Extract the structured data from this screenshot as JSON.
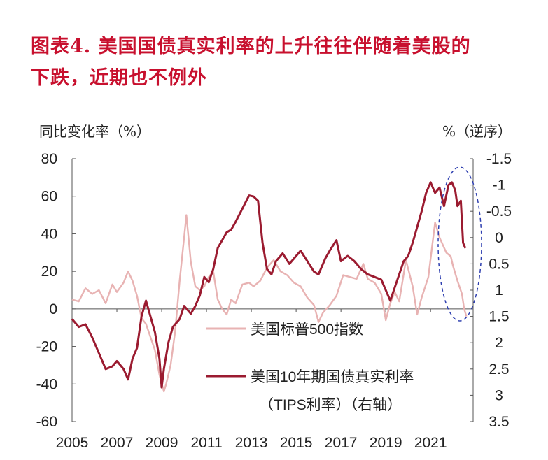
{
  "title": {
    "line1": "图表4.  美国国债真实利率的上升往往伴随着美股的",
    "line2": "下跌，近期也不例外"
  },
  "chart_data": {
    "type": "line",
    "left_axis": {
      "label": "同比变化率（%）",
      "min": -60,
      "max": 80,
      "ticks": [
        "80",
        "60",
        "40",
        "20",
        "0",
        "-20",
        "-40",
        "-60"
      ]
    },
    "right_axis": {
      "label": "%（逆序）",
      "min": -1.5,
      "max": 3.5,
      "inverted": true,
      "ticks": [
        "-1.5",
        "-1",
        "-0.5",
        "0",
        "0.5",
        "1",
        "1.5",
        "2",
        "2.5",
        "3",
        "3.5"
      ]
    },
    "x_ticks": [
      "2005",
      "2007",
      "2009",
      "2011",
      "2013",
      "2015",
      "2017",
      "2019",
      "2021"
    ],
    "legend": {
      "position": "center-right",
      "lines": [
        "美国标普500指数",
        "美国10年期国债真实利率",
        "（TIPS利率）（右轴）"
      ]
    },
    "colors": {
      "sp500": "#e8b3b3",
      "tips": "#9b1b30",
      "ellipse": "#2e3fb0"
    },
    "grid": false,
    "series": [
      {
        "name": "美国标普500指数",
        "axis": "left",
        "points": [
          [
            2005.0,
            5
          ],
          [
            2005.3,
            4
          ],
          [
            2005.6,
            11
          ],
          [
            2005.9,
            8
          ],
          [
            2006.2,
            10
          ],
          [
            2006.5,
            3
          ],
          [
            2006.8,
            13
          ],
          [
            2007.0,
            9
          ],
          [
            2007.3,
            14
          ],
          [
            2007.5,
            20
          ],
          [
            2007.7,
            15
          ],
          [
            2007.9,
            7
          ],
          [
            2008.1,
            -5
          ],
          [
            2008.3,
            -8
          ],
          [
            2008.5,
            -15
          ],
          [
            2008.7,
            -22
          ],
          [
            2008.9,
            -35
          ],
          [
            2009.1,
            -44
          ],
          [
            2009.2,
            -40
          ],
          [
            2009.4,
            -30
          ],
          [
            2009.6,
            -12
          ],
          [
            2009.8,
            15
          ],
          [
            2010.0,
            38
          ],
          [
            2010.1,
            50
          ],
          [
            2010.3,
            25
          ],
          [
            2010.5,
            12
          ],
          [
            2010.7,
            10
          ],
          [
            2010.9,
            12
          ],
          [
            2011.1,
            17
          ],
          [
            2011.3,
            20
          ],
          [
            2011.5,
            5
          ],
          [
            2011.7,
            0
          ],
          [
            2011.9,
            -3
          ],
          [
            2012.1,
            5
          ],
          [
            2012.3,
            3
          ],
          [
            2012.6,
            13
          ],
          [
            2012.9,
            14
          ],
          [
            2013.1,
            12
          ],
          [
            2013.4,
            15
          ],
          [
            2013.7,
            22
          ],
          [
            2014.0,
            26
          ],
          [
            2014.3,
            20
          ],
          [
            2014.6,
            18
          ],
          [
            2014.9,
            14
          ],
          [
            2015.2,
            12
          ],
          [
            2015.5,
            6
          ],
          [
            2015.8,
            2
          ],
          [
            2016.0,
            -7
          ],
          [
            2016.2,
            -2
          ],
          [
            2016.5,
            2
          ],
          [
            2016.8,
            7
          ],
          [
            2017.1,
            18
          ],
          [
            2017.4,
            17
          ],
          [
            2017.7,
            16
          ],
          [
            2018.0,
            24
          ],
          [
            2018.2,
            16
          ],
          [
            2018.5,
            14
          ],
          [
            2018.8,
            8
          ],
          [
            2019.0,
            -6
          ],
          [
            2019.2,
            3
          ],
          [
            2019.4,
            9
          ],
          [
            2019.6,
            4
          ],
          [
            2019.9,
            26
          ],
          [
            2020.2,
            12
          ],
          [
            2020.4,
            -3
          ],
          [
            2020.6,
            6
          ],
          [
            2020.9,
            17
          ],
          [
            2021.2,
            46
          ],
          [
            2021.4,
            38
          ],
          [
            2021.7,
            30
          ],
          [
            2021.9,
            28
          ],
          [
            2022.0,
            23
          ],
          [
            2022.2,
            15
          ],
          [
            2022.4,
            8
          ],
          [
            2022.5,
            0
          ],
          [
            2022.6,
            -4
          ]
        ]
      },
      {
        "name": "美国10年期国债真实利率",
        "axis": "right",
        "points": [
          [
            2005.0,
            1.55
          ],
          [
            2005.3,
            1.7
          ],
          [
            2005.6,
            1.65
          ],
          [
            2005.9,
            1.9
          ],
          [
            2006.2,
            2.2
          ],
          [
            2006.5,
            2.5
          ],
          [
            2006.8,
            2.45
          ],
          [
            2007.0,
            2.35
          ],
          [
            2007.3,
            2.5
          ],
          [
            2007.5,
            2.7
          ],
          [
            2007.7,
            2.3
          ],
          [
            2007.9,
            2.1
          ],
          [
            2008.1,
            1.5
          ],
          [
            2008.3,
            1.2
          ],
          [
            2008.5,
            1.5
          ],
          [
            2008.7,
            1.8
          ],
          [
            2008.9,
            2.3
          ],
          [
            2009.0,
            2.85
          ],
          [
            2009.1,
            2.5
          ],
          [
            2009.3,
            2.0
          ],
          [
            2009.5,
            1.7
          ],
          [
            2009.8,
            1.55
          ],
          [
            2010.0,
            1.3
          ],
          [
            2010.3,
            1.45
          ],
          [
            2010.5,
            1.3
          ],
          [
            2010.7,
            1.1
          ],
          [
            2010.9,
            0.75
          ],
          [
            2011.1,
            0.85
          ],
          [
            2011.3,
            0.6
          ],
          [
            2011.5,
            0.2
          ],
          [
            2011.7,
            0.05
          ],
          [
            2011.9,
            -0.1
          ],
          [
            2012.1,
            -0.15
          ],
          [
            2012.3,
            -0.3
          ],
          [
            2012.6,
            -0.55
          ],
          [
            2012.9,
            -0.8
          ],
          [
            2013.1,
            -0.78
          ],
          [
            2013.3,
            -0.7
          ],
          [
            2013.5,
            0.1
          ],
          [
            2013.7,
            0.6
          ],
          [
            2013.9,
            0.7
          ],
          [
            2014.1,
            0.45
          ],
          [
            2014.4,
            0.3
          ],
          [
            2014.7,
            0.5
          ],
          [
            2014.9,
            0.4
          ],
          [
            2015.2,
            0.25
          ],
          [
            2015.5,
            0.45
          ],
          [
            2015.8,
            0.65
          ],
          [
            2016.0,
            0.7
          ],
          [
            2016.3,
            0.4
          ],
          [
            2016.5,
            0.25
          ],
          [
            2016.8,
            0.05
          ],
          [
            2017.0,
            0.45
          ],
          [
            2017.3,
            0.35
          ],
          [
            2017.6,
            0.45
          ],
          [
            2017.9,
            0.6
          ],
          [
            2018.2,
            0.7
          ],
          [
            2018.5,
            0.75
          ],
          [
            2018.8,
            0.8
          ],
          [
            2019.0,
            1.0
          ],
          [
            2019.2,
            1.2
          ],
          [
            2019.4,
            0.95
          ],
          [
            2019.6,
            0.7
          ],
          [
            2019.8,
            0.45
          ],
          [
            2020.0,
            0.35
          ],
          [
            2020.2,
            0.1
          ],
          [
            2020.4,
            -0.2
          ],
          [
            2020.6,
            -0.5
          ],
          [
            2020.8,
            -0.85
          ],
          [
            2021.0,
            -1.05
          ],
          [
            2021.2,
            -0.85
          ],
          [
            2021.4,
            -0.95
          ],
          [
            2021.6,
            -0.6
          ],
          [
            2021.8,
            -1.0
          ],
          [
            2021.95,
            -1.05
          ],
          [
            2022.1,
            -0.9
          ],
          [
            2022.2,
            -0.6
          ],
          [
            2022.35,
            -0.7
          ],
          [
            2022.45,
            0.1
          ],
          [
            2022.55,
            0.2
          ]
        ]
      }
    ]
  }
}
